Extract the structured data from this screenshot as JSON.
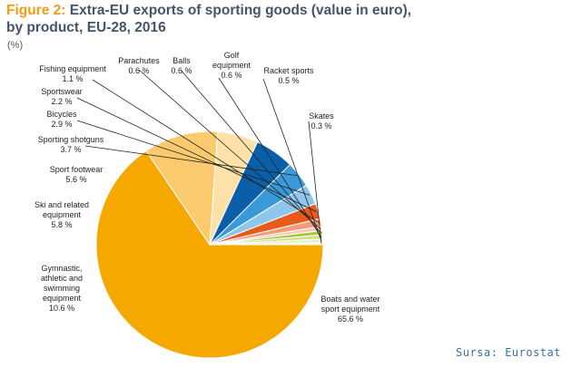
{
  "title": {
    "figure_label": "Figure 2:",
    "line1": "Extra-EU exports of sporting goods (value in euro),",
    "line2": "by product, EU-28, 2016"
  },
  "unit_label": "(%)",
  "source_label": "Sursa: Eurostat",
  "chart_data": {
    "type": "pie",
    "title": "Figure 2: Extra-EU exports of sporting goods (value in euro), by product, EU-28, 2016",
    "unit": "(%)",
    "slices": [
      {
        "label": "Boats and water sport equipment",
        "value": 65.6,
        "display": "65.6 %",
        "color": "#f5a800"
      },
      {
        "label": "Gymnastic, athletic and swimming equipment",
        "value": 10.6,
        "display": "10.6 %",
        "color": "#fcca6e"
      },
      {
        "label": "Ski and related equipment",
        "value": 5.8,
        "display": "5.8 %",
        "color": "#fde1a8"
      },
      {
        "label": "Sport footwear",
        "value": 5.6,
        "display": "5.6 %",
        "color": "#0b5ea8"
      },
      {
        "label": "Sporting shotguns",
        "value": 3.7,
        "display": "3.7 %",
        "color": "#3a9ad9"
      },
      {
        "label": "Bicycles",
        "value": 2.9,
        "display": "2.9 %",
        "color": "#8ec6ec"
      },
      {
        "label": "Sportswear",
        "value": 2.2,
        "display": "2.2 %",
        "color": "#e85a1b"
      },
      {
        "label": "Fishing equipment",
        "value": 1.1,
        "display": "1.1 %",
        "color": "#f39a7b"
      },
      {
        "label": "Parachutes",
        "value": 0.6,
        "display": "0.6 %",
        "color": "#f8c9b5"
      },
      {
        "label": "Balls",
        "value": 0.6,
        "display": "0.6 %",
        "color": "#a8c43b"
      },
      {
        "label": "Golf equipment",
        "value": 0.6,
        "display": "0.6 %",
        "color": "#cfe08a"
      },
      {
        "label": "Racket sports",
        "value": 0.5,
        "display": "0.5 %",
        "color": "#e6efc0"
      },
      {
        "label": "Skates",
        "value": 0.3,
        "display": "0.3 %",
        "color": "#f5f8e2"
      }
    ]
  }
}
